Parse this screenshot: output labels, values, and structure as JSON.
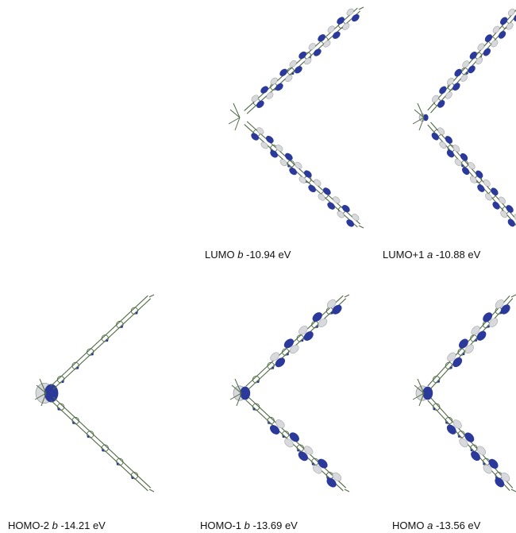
{
  "colors": {
    "lobe_positive": "#2b3a9a",
    "lobe_negative": "#d7d9dd",
    "bond": "#4f6a44",
    "atom_n": "#2233a0"
  },
  "panels": [
    {
      "id": "lumo",
      "label_prefix": "LUMO",
      "symmetry": "b",
      "energy": "-10.94 eV",
      "lobe_density": "arms",
      "center_lobe": "none"
    },
    {
      "id": "lumo1",
      "label_prefix": "LUMO+1",
      "symmetry": "a",
      "energy": "-10.88 eV",
      "lobe_density": "arms",
      "center_lobe": "small"
    },
    {
      "id": "homo2",
      "label_prefix": "HOMO-2",
      "symmetry": "b",
      "energy": "-14.21 eV",
      "lobe_density": "none",
      "center_lobe": "large"
    },
    {
      "id": "homo1",
      "label_prefix": "HOMO-1",
      "symmetry": "b",
      "energy": "-13.69 eV",
      "lobe_density": "outer",
      "center_lobe": "medium"
    },
    {
      "id": "homo",
      "label_prefix": "HOMO",
      "symmetry": "a",
      "energy": "-13.56 eV",
      "lobe_density": "outer",
      "center_lobe": "medium"
    }
  ]
}
